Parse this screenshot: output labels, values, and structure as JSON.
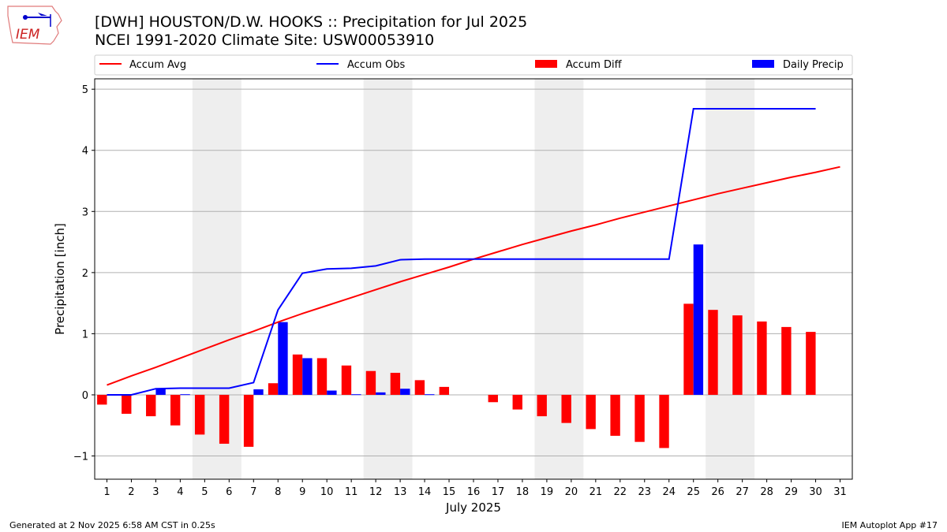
{
  "header": {
    "title_line1": "[DWH] HOUSTON/D.W. HOOKS :: Precipitation for Jul 2025",
    "title_line2": "NCEI 1991-2020 Climate Site: USW00053910",
    "logo_text": "IEM"
  },
  "footer": {
    "generated": "Generated at 2 Nov 2025 6:58 AM CST in 0.25s",
    "app": "IEM Autoplot App #17"
  },
  "colors": {
    "avg": "#ff0000",
    "obs": "#0000ff",
    "diff": "#ff0000",
    "daily": "#0000ff",
    "weekend": "#eeeeee"
  },
  "chart_data": {
    "type": "bar",
    "xlabel": "July 2025",
    "ylabel": "Precipitation [inch]",
    "xlim": [
      0.5,
      31.5
    ],
    "ylim": [
      -1.38,
      5.17
    ],
    "yticks": [
      -1,
      0,
      1,
      2,
      3,
      4,
      5
    ],
    "ytick_labels": [
      "−1",
      "0",
      "1",
      "2",
      "3",
      "4",
      "5"
    ],
    "grid": true,
    "legend_position": "top",
    "weekend_spans": [
      [
        5,
        6
      ],
      [
        12,
        13
      ],
      [
        19,
        20
      ],
      [
        26,
        27
      ]
    ],
    "days": [
      1,
      2,
      3,
      4,
      5,
      6,
      7,
      8,
      9,
      10,
      11,
      12,
      13,
      14,
      15,
      16,
      17,
      18,
      19,
      20,
      21,
      22,
      23,
      24,
      25,
      26,
      27,
      28,
      29,
      30,
      31
    ],
    "series": [
      {
        "name": "Accum Avg",
        "type": "line",
        "values": [
          0.16,
          0.31,
          0.45,
          0.6,
          0.75,
          0.9,
          1.04,
          1.19,
          1.33,
          1.46,
          1.59,
          1.72,
          1.85,
          1.97,
          2.09,
          2.22,
          2.34,
          2.46,
          2.57,
          2.68,
          2.78,
          2.89,
          2.99,
          3.09,
          3.19,
          3.29,
          3.38,
          3.47,
          3.56,
          3.64,
          3.73
        ]
      },
      {
        "name": "Accum Obs",
        "type": "line",
        "values": [
          0,
          0,
          0.1,
          0.11,
          0.11,
          0.11,
          0.2,
          1.39,
          1.99,
          2.06,
          2.07,
          2.11,
          2.21,
          2.22,
          2.22,
          2.22,
          2.22,
          2.22,
          2.22,
          2.22,
          2.22,
          2.22,
          2.22,
          2.22,
          4.68,
          4.68,
          4.68,
          4.68,
          4.68,
          4.68,
          null
        ]
      },
      {
        "name": "Accum Diff",
        "type": "bar",
        "values": [
          -0.16,
          -0.31,
          -0.35,
          -0.5,
          -0.65,
          -0.8,
          -0.85,
          0.19,
          0.66,
          0.6,
          0.48,
          0.39,
          0.36,
          0.24,
          0.13,
          0.0,
          -0.12,
          -0.24,
          -0.35,
          -0.46,
          -0.56,
          -0.67,
          -0.77,
          -0.87,
          1.49,
          1.39,
          1.3,
          1.2,
          1.11,
          1.03,
          null
        ]
      },
      {
        "name": "Daily Precip",
        "type": "bar",
        "values": [
          0,
          0,
          0.1,
          0.01,
          0,
          0,
          0.09,
          1.19,
          0.6,
          0.07,
          0.01,
          0.04,
          0.1,
          0.01,
          0,
          0,
          0,
          0,
          0,
          0,
          0,
          0,
          0,
          0,
          2.46,
          0,
          0,
          0,
          0,
          0,
          null
        ]
      }
    ]
  }
}
